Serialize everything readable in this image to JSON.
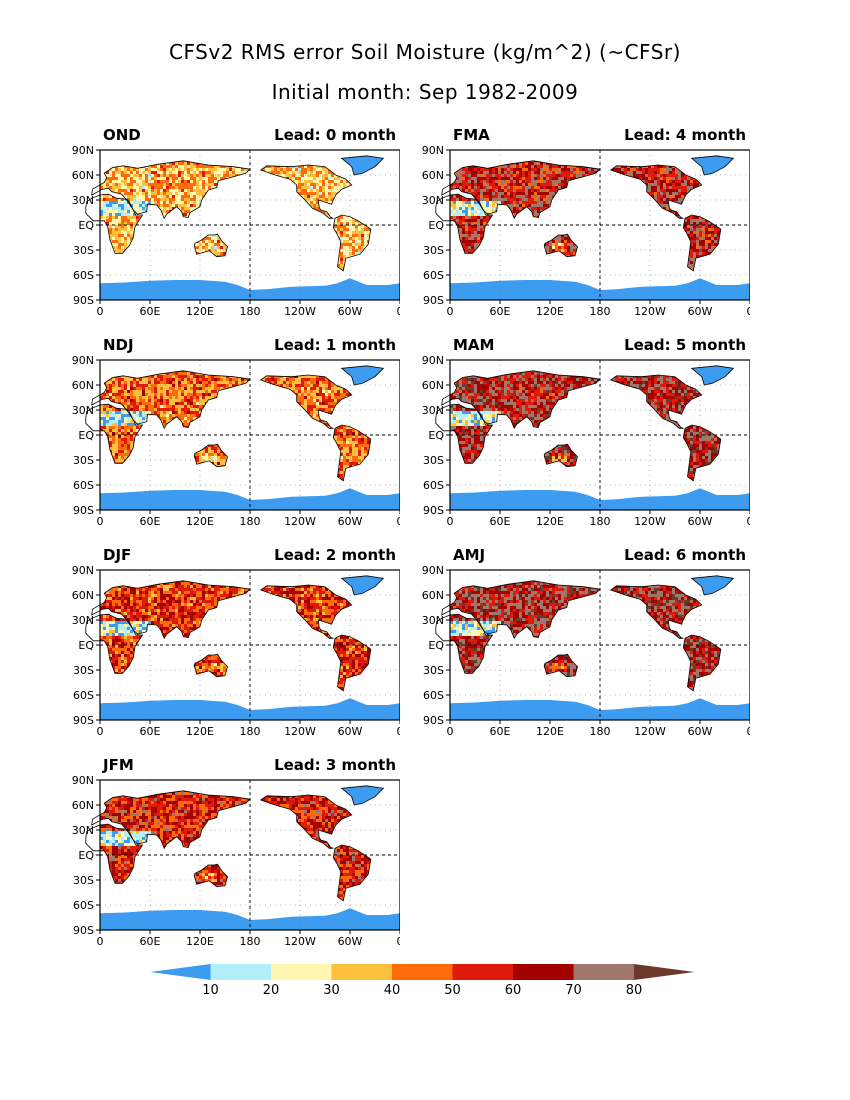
{
  "title": "CFSv2 RMS error Soil Moisture (kg/m^2) (~CFSr)",
  "subtitle": "Initial month: Sep 1982-2009",
  "lat_ticks": [
    "90N",
    "60N",
    "30N",
    "EQ",
    "30S",
    "60S",
    "90S"
  ],
  "lon_ticks": [
    "0",
    "60E",
    "120E",
    "180",
    "120W",
    "60W",
    "0"
  ],
  "panels": [
    {
      "season": "OND",
      "lead": "Lead: 0 month",
      "intensity": 0.25
    },
    {
      "season": "FMA",
      "lead": "Lead: 4 month",
      "intensity": 0.72
    },
    {
      "season": "NDJ",
      "lead": "Lead: 1 month",
      "intensity": 0.42
    },
    {
      "season": "MAM",
      "lead": "Lead: 5 month",
      "intensity": 0.8
    },
    {
      "season": "DJF",
      "lead": "Lead: 2 month",
      "intensity": 0.55
    },
    {
      "season": "AMJ",
      "lead": "Lead: 6 month",
      "intensity": 0.82
    },
    {
      "season": "JFM",
      "lead": "Lead: 3 month",
      "intensity": 0.62
    }
  ],
  "colorbar": {
    "colors": [
      "#3d9bf0",
      "#b2eefa",
      "#fff7b0",
      "#fdbf3e",
      "#fd6b0a",
      "#e01a0a",
      "#a30000",
      "#a0776b",
      "#6b3a2a"
    ],
    "labels": [
      "10",
      "20",
      "30",
      "40",
      "50",
      "60",
      "70",
      "80"
    ]
  }
}
